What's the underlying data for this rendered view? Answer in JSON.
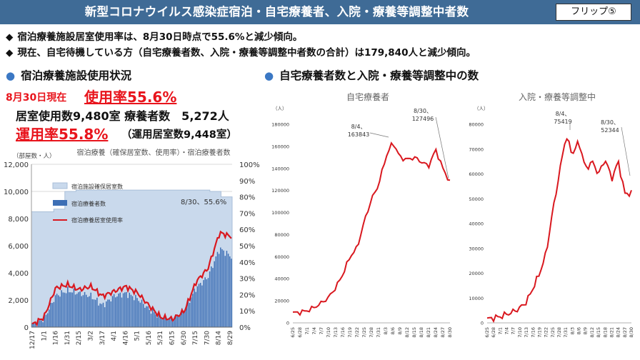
{
  "header": {
    "title": "新型コロナウイルス感染症宿泊・自宅療養者、入院・療養等調整中者数",
    "flip_label": "フリップ⑤"
  },
  "bullets": [
    {
      "mark": "◆",
      "text": "宿泊療養施設居室使用率は、8月30日時点で55.6%と減少傾向。"
    },
    {
      "mark": "◆",
      "text": "現在、自宅待機している方（自宅療養者数、入院・療養等調整中者数の合計）は179,840人と減少傾向。"
    }
  ],
  "section_left": {
    "dot": "●",
    "title": "宿泊療養施設使用状況"
  },
  "section_right": {
    "dot": "●",
    "title": "自宅療養者数と入院・療養等調整中の数"
  },
  "stats": {
    "date_label": "8月30日現在",
    "usage_rate": "使用率55.6%",
    "rooms_line": "居室使用数9,480室 療養者数　5,272人",
    "operation_rate": "運用率55.8%",
    "operation_note": "（運用居室数9,448室）"
  },
  "colors": {
    "header_bg": "#3f6b96",
    "accent_red": "#e8141c",
    "bar_blue": "#3d6fb5",
    "area_fill": "#c9d9ec",
    "line_red": "#d9181f",
    "section_dot": "#3b78c4"
  },
  "chart_data": [
    {
      "type": "bar",
      "title": "宿泊療養（確保居室数、使用率）・宿泊療養者数",
      "ylabel_left": "（部屋数・人）",
      "ylim_left": [
        0,
        12000
      ],
      "yticks_left": [
        "0",
        "2,000",
        "4,000",
        "6,000",
        "8,000",
        "10,000",
        "12,000"
      ],
      "ylim_right": [
        0,
        100
      ],
      "yticks_right": [
        "0%",
        "10%",
        "20%",
        "30%",
        "40%",
        "50%",
        "60%",
        "70%",
        "80%",
        "90%",
        "100%"
      ],
      "x_tick_labels": [
        "12/17",
        "1/1",
        "1/16",
        "1/31",
        "2/15",
        "3/2",
        "3/17",
        "4/1",
        "4/16",
        "5/1",
        "5/16",
        "5/31",
        "6/15",
        "6/30",
        "7/15",
        "7/30",
        "8/14",
        "8/29"
      ],
      "legend": [
        "宿泊施設確保居室数",
        "宿泊療養者数",
        "宿泊療養居室使用率"
      ],
      "legend_placement": "center",
      "annotation": "8/30、55.6%",
      "series": [
        {
          "name": "宿泊施設確保居室数",
          "kind": "area",
          "axis": "left",
          "values": [
            8500,
            8500,
            8700,
            10000,
            10100,
            10100,
            10100,
            10100,
            10100,
            10100,
            10100,
            10100,
            10100,
            10100,
            10100,
            10100,
            10000,
            9600
          ]
        },
        {
          "name": "宿泊療養者数",
          "kind": "bar",
          "axis": "left",
          "values": [
            200,
            600,
            2300,
            2700,
            2500,
            2300,
            1600,
            2300,
            2500,
            2100,
            1300,
            700,
            600,
            1300,
            2900,
            3700,
            5800,
            5200
          ]
        },
        {
          "name": "宿泊療養居室使用率",
          "kind": "line",
          "axis": "right",
          "values": [
            1.5,
            6,
            24,
            26,
            23,
            25,
            19,
            22,
            25,
            21,
            13,
            6,
            5,
            10,
            28,
            36,
            58,
            55.6
          ]
        }
      ]
    },
    {
      "type": "line",
      "title": "自宅療養者",
      "ylabel": "（人）",
      "ylim": [
        0,
        180000
      ],
      "yticks": [
        "0",
        "20000",
        "40000",
        "60000",
        "80000",
        "100000",
        "120000",
        "140000",
        "160000",
        "180000"
      ],
      "x": [
        "6/25",
        "6/28",
        "7/1",
        "7/4",
        "7/7",
        "7/10",
        "7/13",
        "7/16",
        "7/19",
        "7/22",
        "7/25",
        "7/28",
        "7/31",
        "8/3",
        "8/6",
        "8/9",
        "8/12",
        "8/15",
        "8/18",
        "8/21",
        "8/24",
        "8/27",
        "8/30"
      ],
      "series": [
        {
          "values": [
            9000,
            9500,
            11000,
            14000,
            18000,
            23000,
            32000,
            44000,
            60000,
            68000,
            92000,
            112000,
            125000,
            150000,
            163843,
            150000,
            148000,
            150000,
            146000,
            142000,
            157000,
            140000,
            127496
          ]
        }
      ],
      "annotations": [
        "8/4、\n163843",
        "8/30、\n127496"
      ]
    },
    {
      "type": "line",
      "title": "入院・療養等調整中",
      "ylabel": "（人）",
      "ylim": [
        0,
        80000
      ],
      "yticks": [
        "0",
        "10000",
        "20000",
        "30000",
        "40000",
        "50000",
        "60000",
        "70000",
        "80000"
      ],
      "x": [
        "6/25",
        "6/28",
        "7/1",
        "7/4",
        "7/7",
        "7/10",
        "7/13",
        "7/16",
        "7/19",
        "7/22",
        "7/25",
        "7/28",
        "7/31",
        "8/3",
        "8/6",
        "8/9",
        "8/12",
        "8/15",
        "8/18",
        "8/21",
        "8/24",
        "8/27",
        "8/30"
      ],
      "series": [
        {
          "values": [
            1500,
            2000,
            2500,
            3500,
            4500,
            6000,
            8500,
            14000,
            20000,
            28000,
            45000,
            60000,
            75419,
            68000,
            73000,
            62000,
            65000,
            60000,
            66000,
            58000,
            65000,
            52000,
            52344
          ]
        }
      ],
      "annotations": [
        "8/4、\n75419",
        "8/30、\n52344"
      ]
    }
  ]
}
